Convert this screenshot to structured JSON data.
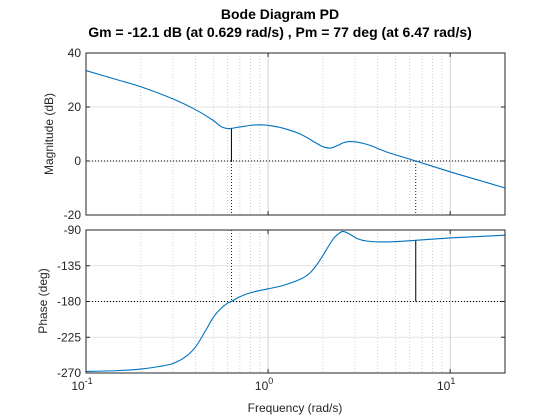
{
  "chart_data": {
    "type": "line",
    "title": "Bode Diagram PD",
    "subtitle": "Gm = -12.1 dB (at 0.629 rad/s) ,  Pm = 77 deg (at 6.47 rad/s)",
    "xlabel": "Frequency  (rad/s)",
    "xscale": "log",
    "xlim": [
      0.1,
      20
    ],
    "x_ticks": [
      0.1,
      1,
      10
    ],
    "x_tick_labels": [
      {
        "base": "10",
        "exp": "-1"
      },
      {
        "base": "10",
        "exp": "0"
      },
      {
        "base": "10",
        "exp": "1"
      }
    ],
    "grid": true,
    "color": "#0072BD",
    "markers": {
      "gain_margin_frequency": 0.629,
      "phase_margin_frequency": 6.47,
      "gain_margin_db": -12.1,
      "phase_margin_deg": 77
    },
    "panels": [
      {
        "ylabel": "Magnitude (dB)",
        "ylim": [
          -20,
          40
        ],
        "y_ticks": [
          -20,
          0,
          20,
          40
        ],
        "reference_y": 0,
        "x": [
          0.1,
          0.15,
          0.2,
          0.3,
          0.4,
          0.5,
          0.55,
          0.6,
          0.629,
          0.7,
          0.8,
          0.9,
          1.0,
          1.2,
          1.5,
          1.8,
          2.0,
          2.2,
          2.4,
          2.6,
          2.8,
          3.0,
          3.3,
          3.7,
          4.5,
          6.47,
          10,
          15,
          20
        ],
        "y": [
          33.5,
          30,
          27.5,
          23,
          19,
          15,
          12.8,
          12,
          12.1,
          12.6,
          13.2,
          13.4,
          13.2,
          12.2,
          10,
          7,
          5.3,
          4.8,
          5.7,
          6.8,
          7.2,
          7.1,
          6.6,
          5.6,
          3.3,
          0,
          -4,
          -7.5,
          -10
        ]
      },
      {
        "ylabel": "Phase (deg)",
        "ylim": [
          -270,
          -90
        ],
        "y_ticks": [
          -270,
          -225,
          -180,
          -135,
          -90
        ],
        "reference_y": -180,
        "x": [
          0.1,
          0.15,
          0.2,
          0.25,
          0.3,
          0.35,
          0.4,
          0.45,
          0.5,
          0.55,
          0.6,
          0.629,
          0.7,
          0.8,
          1.0,
          1.2,
          1.5,
          1.7,
          1.9,
          2.1,
          2.3,
          2.5,
          2.6,
          2.8,
          3.1,
          3.5,
          4.5,
          6.47,
          10,
          15,
          20
        ],
        "y": [
          -268,
          -267,
          -265,
          -262,
          -258,
          -250,
          -237,
          -218,
          -200,
          -189,
          -182,
          -180,
          -174,
          -169,
          -164,
          -160,
          -152,
          -144,
          -130,
          -114,
          -100,
          -93,
          -92,
          -95,
          -101,
          -104,
          -105,
          -103,
          -100,
          -98,
          -96.5
        ]
      }
    ]
  }
}
